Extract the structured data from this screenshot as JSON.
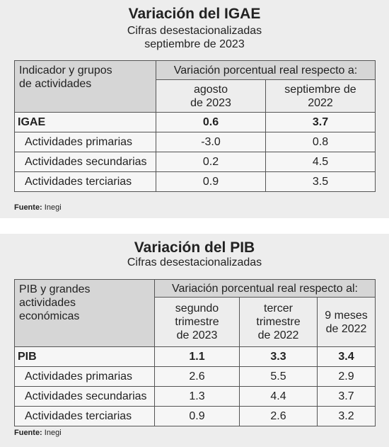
{
  "igae": {
    "title": "Variación del IGAE",
    "subtitle": "Cifras desestacionalizadas",
    "period": "septiembre de 2023",
    "table": {
      "header": [
        "Indicador y grupos\nde actividades",
        "Variación porcentual real respecto a:"
      ],
      "columns": [
        "agosto\nde 2023",
        "septiembre de\n2022"
      ],
      "rows": [
        [
          "IGAE",
          "0.6",
          "3.7"
        ],
        [
          "Actividades primarias",
          "-3.0",
          "0.8"
        ],
        [
          "Actividades secundarias",
          "0.2",
          "4.5"
        ],
        [
          "Actividades terciarias",
          "0.9",
          "3.5"
        ]
      ]
    },
    "source_label": "Fuente:",
    "source": "Inegi"
  },
  "pib": {
    "title": "Variación del PIB",
    "subtitle": "Cifras desestacionalizadas",
    "table": {
      "header": [
        "PIB y grandes\nactividades\neconómicas",
        "Variación porcentual real respecto al:"
      ],
      "columns": [
        "segundo\ntrimestre\nde 2023",
        "tercer\ntrimestre\nde 2022",
        "9 meses\nde 2022"
      ],
      "rows": [
        [
          "PIB",
          "1.1",
          "3.3",
          "3.4"
        ],
        [
          "Actividades primarias",
          "2.6",
          "5.5",
          "2.9"
        ],
        [
          "Actividades secundarias",
          "1.3",
          "4.4",
          "3.7"
        ],
        [
          "Actividades terciarias",
          "0.9",
          "2.6",
          "3.2"
        ]
      ]
    },
    "source_label": "Fuente:",
    "source": "Inegi"
  }
}
